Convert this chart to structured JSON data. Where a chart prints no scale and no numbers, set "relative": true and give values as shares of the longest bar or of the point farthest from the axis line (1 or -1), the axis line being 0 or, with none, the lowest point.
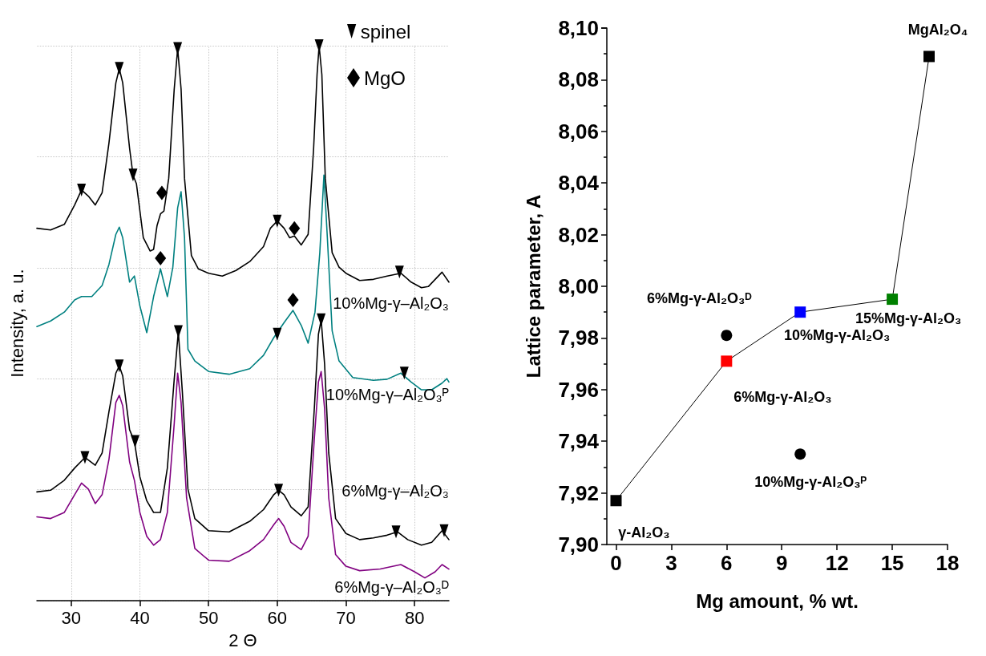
{
  "chart_data": [
    {
      "type": "line",
      "xlabel": "2 Θ",
      "ylabel": "Intensity, a. u.",
      "relative": true,
      "xlim": [
        25,
        85
      ],
      "xticks": [
        30,
        40,
        50,
        60,
        70,
        80
      ],
      "grid": true,
      "legend": "top right",
      "series": [
        {
          "name": "10%Mg-γ–Al₂O₃",
          "color": "#000000",
          "x": [
            25,
            27,
            29,
            30.5,
            31.5,
            32.5,
            33.5,
            34.5,
            35.5,
            36.5,
            37,
            37.5,
            38.5,
            39,
            39.5,
            40.5,
            41.5,
            42,
            42.5,
            43,
            43.5,
            44.2,
            45,
            45.5,
            46,
            46.5,
            47.5,
            48.5,
            50,
            52,
            54,
            56,
            58,
            59,
            60,
            61,
            61.8,
            62.5,
            63.5,
            64.5,
            65.3,
            65.8,
            66.1,
            66.5,
            67,
            68,
            69,
            70,
            72,
            74,
            76,
            78,
            79.5,
            81,
            82,
            83,
            84,
            85
          ],
          "values": [
            0.671,
            0.668,
            0.678,
            0.713,
            0.74,
            0.729,
            0.713,
            0.735,
            0.825,
            0.933,
            0.959,
            0.933,
            0.815,
            0.767,
            0.751,
            0.654,
            0.63,
            0.633,
            0.676,
            0.697,
            0.702,
            0.761,
            0.922,
            0.995,
            0.922,
            0.761,
            0.622,
            0.598,
            0.59,
            0.585,
            0.595,
            0.611,
            0.638,
            0.671,
            0.684,
            0.671,
            0.654,
            0.657,
            0.641,
            0.66,
            0.815,
            0.948,
            1.0,
            0.948,
            0.761,
            0.627,
            0.601,
            0.59,
            0.577,
            0.579,
            0.585,
            0.59,
            0.574,
            0.564,
            0.566,
            0.579,
            0.592,
            0.574
          ]
        },
        {
          "name": "10%Mg-γ–Al₂O₃ᴾ",
          "color": "#008080",
          "x": [
            25,
            27,
            29,
            30.5,
            31.5,
            33,
            34.5,
            35.5,
            36.5,
            37,
            37.5,
            38.5,
            39.2,
            40,
            41,
            42,
            43,
            44,
            44.8,
            45.5,
            46,
            46.5,
            47,
            48,
            50,
            53,
            56,
            58,
            59.5,
            61,
            62.3,
            63.5,
            64.5,
            65.5,
            66.2,
            66.8,
            67.3,
            68,
            69,
            71,
            74,
            76,
            78,
            79.5,
            81,
            82.5,
            84,
            84.7,
            85
          ],
          "values": [
            0.494,
            0.504,
            0.52,
            0.542,
            0.548,
            0.548,
            0.568,
            0.606,
            0.66,
            0.673,
            0.654,
            0.574,
            0.585,
            0.531,
            0.483,
            0.548,
            0.598,
            0.548,
            0.601,
            0.708,
            0.737,
            0.654,
            0.453,
            0.432,
            0.413,
            0.408,
            0.418,
            0.442,
            0.474,
            0.501,
            0.523,
            0.496,
            0.464,
            0.52,
            0.627,
            0.767,
            0.654,
            0.486,
            0.432,
            0.402,
            0.397,
            0.399,
            0.41,
            0.394,
            0.38,
            0.38,
            0.392,
            0.4,
            0.394
          ]
        },
        {
          "name": "6%Mg-γ–Al₂O₃",
          "color": "#000000",
          "x": [
            25,
            27,
            29,
            30.5,
            32,
            33.5,
            34.5,
            35.5,
            36.5,
            37,
            37.5,
            38.5,
            39.2,
            40,
            41,
            42,
            43,
            44,
            45,
            45.6,
            46.2,
            47,
            48,
            50,
            53,
            56,
            58,
            59.5,
            60.2,
            61,
            62,
            63.5,
            64.5,
            65.4,
            66,
            66.4,
            66.9,
            67.5,
            68.5,
            70,
            72,
            74,
            76,
            77.5,
            79,
            81,
            82.5,
            84,
            85
          ],
          "values": [
            0.196,
            0.199,
            0.217,
            0.239,
            0.258,
            0.244,
            0.266,
            0.341,
            0.41,
            0.423,
            0.405,
            0.308,
            0.287,
            0.223,
            0.18,
            0.159,
            0.159,
            0.239,
            0.399,
            0.485,
            0.373,
            0.201,
            0.148,
            0.126,
            0.124,
            0.143,
            0.164,
            0.191,
            0.199,
            0.191,
            0.169,
            0.153,
            0.169,
            0.346,
            0.48,
            0.506,
            0.426,
            0.266,
            0.148,
            0.121,
            0.11,
            0.113,
            0.118,
            0.124,
            0.11,
            0.1,
            0.105,
            0.126,
            0.11
          ]
        },
        {
          "name": "6%Mg-γ–Al₂O₃ᴰ",
          "color": "#800080",
          "x": [
            25,
            27,
            29,
            30.5,
            31.5,
            32.5,
            33.5,
            34.5,
            35.5,
            36.5,
            37,
            37.5,
            38.5,
            39.2,
            40,
            41,
            42,
            43,
            44,
            45,
            45.5,
            46,
            46.8,
            48,
            50,
            53,
            56,
            58,
            59.5,
            60.2,
            61,
            62,
            63.5,
            64.5,
            65.4,
            66,
            66.4,
            66.9,
            67.5,
            68.5,
            70,
            72,
            75,
            78,
            80,
            81.5,
            83,
            84,
            85
          ],
          "values": [
            0.151,
            0.148,
            0.159,
            0.191,
            0.212,
            0.201,
            0.175,
            0.191,
            0.255,
            0.357,
            0.37,
            0.351,
            0.25,
            0.217,
            0.159,
            0.116,
            0.1,
            0.11,
            0.159,
            0.319,
            0.41,
            0.357,
            0.185,
            0.094,
            0.073,
            0.071,
            0.09,
            0.11,
            0.137,
            0.148,
            0.134,
            0.105,
            0.092,
            0.116,
            0.292,
            0.394,
            0.413,
            0.346,
            0.185,
            0.083,
            0.062,
            0.054,
            0.057,
            0.065,
            0.052,
            0.041,
            0.052,
            0.065,
            0.057
          ]
        },
        {
          "name": "spinel",
          "type": "scatter",
          "marker": "triangle",
          "color": "#000000",
          "x": [
            31.5,
            37,
            39,
            45.5,
            60,
            66.1,
            77.8,
            60,
            78.5,
            32,
            37,
            39.3,
            45.6,
            60.2,
            66.4,
            77.3,
            84.3
          ],
          "values": [
            0.74,
            0.959,
            0.767,
            0.995,
            0.684,
            1.0,
            0.592,
            0.48,
            0.41,
            0.258,
            0.423,
            0.287,
            0.485,
            0.199,
            0.506,
            0.124,
            0.126
          ]
        },
        {
          "name": "MgO",
          "type": "scatter",
          "marker": "diamond",
          "color": "#000000",
          "x": [
            43.2,
            62.5,
            43,
            62.3
          ],
          "values": [
            0.735,
            0.671,
            0.617,
            0.542
          ]
        }
      ]
    },
    {
      "type": "line",
      "xlabel": "Mg amount, % wt.",
      "ylabel": "Lattice parameter, A",
      "xlim": [
        -0.5,
        18
      ],
      "xticks": [
        0,
        3,
        6,
        9,
        12,
        15,
        18
      ],
      "ylim": [
        7.9,
        8.1
      ],
      "yticks": [
        {
          "value": 7.9,
          "label": "7,90"
        },
        {
          "value": 7.92,
          "label": "7,92"
        },
        {
          "value": 7.94,
          "label": "7,94"
        },
        {
          "value": 7.96,
          "label": "7,96"
        },
        {
          "value": 7.98,
          "label": "7,98"
        },
        {
          "value": 8.0,
          "label": "8,00"
        },
        {
          "value": 8.02,
          "label": "8,02"
        },
        {
          "value": 8.04,
          "label": "8,04"
        },
        {
          "value": 8.06,
          "label": "8,06"
        },
        {
          "value": 8.08,
          "label": "8,08"
        },
        {
          "value": 8.1,
          "label": "8,10"
        }
      ],
      "annotations": [
        {
          "text": "γ-Al₂O₃",
          "x": 0,
          "y": 7.917
        },
        {
          "text": "6%Mg-γ-Al₂O₃",
          "x": 6,
          "y": 7.971
        },
        {
          "text": "10%Mg-γ-Al₂O₃",
          "x": 10,
          "y": 7.99
        },
        {
          "text": "15%Mg-γ-Al₂O₃",
          "x": 15,
          "y": 7.995
        },
        {
          "text": "MgAl₂O₄",
          "x": 17,
          "y": 8.089
        },
        {
          "text": "6%Mg-γ-Al₂O₃ᴰ",
          "x": 6,
          "y": 7.981
        },
        {
          "text": "10%Mg-γ-Al₂O₃ᴾ",
          "x": 10,
          "y": 7.935
        }
      ],
      "series": [
        {
          "marker": "square",
          "color": "#000000",
          "x": [
            0,
            6,
            10,
            15,
            17
          ],
          "values": [
            7.917,
            7.971,
            7.99,
            7.995,
            8.089
          ],
          "colors": [
            "#000000",
            "#ff0000",
            "#0000ff",
            "#008000",
            "#000000"
          ]
        },
        {
          "type": "scatter",
          "marker": "circle",
          "color": "#000000",
          "x": [
            6,
            10
          ],
          "values": [
            7.981,
            7.935
          ]
        }
      ]
    }
  ]
}
